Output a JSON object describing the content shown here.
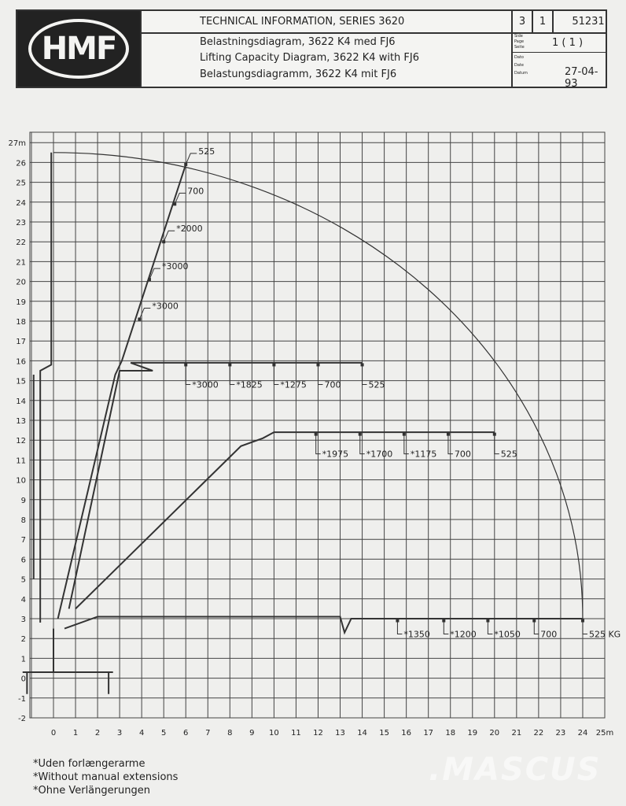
{
  "header": {
    "logo_text": "HMF",
    "title": "TECHNICAL INFORMATION, SERIES 3620",
    "subtitle_da": "Belastningsdiagram, 3622 K4 med FJ6",
    "subtitle_en": "Lifting Capacity Diagram, 3622 K4 with FJ6",
    "subtitle_de": "Belastungsdiagramm, 3622 K4 mit FJ6",
    "cell_a": "3",
    "cell_b": "1",
    "doc_number": "51231",
    "page_labels": [
      "Side",
      "Page",
      "Seite"
    ],
    "page": "1 ( 1 )",
    "date_labels": [
      "Dato",
      "Date",
      "Datum"
    ],
    "date": "27-04-93"
  },
  "chart_data": {
    "type": "diagram",
    "x_ticks": [
      "0",
      "1",
      "2",
      "3",
      "4",
      "5",
      "6",
      "7",
      "8",
      "9",
      "10",
      "11",
      "12",
      "13",
      "14",
      "15",
      "16",
      "17",
      "18",
      "19",
      "20",
      "21",
      "22",
      "23",
      "24",
      "25m"
    ],
    "y_ticks": [
      "-2",
      "-1",
      "0",
      "1",
      "2",
      "3",
      "4",
      "5",
      "6",
      "7",
      "8",
      "9",
      "10",
      "11",
      "12",
      "13",
      "14",
      "15",
      "16",
      "17",
      "18",
      "19",
      "20",
      "21",
      "22",
      "23",
      "24",
      "25",
      "26",
      "27m"
    ],
    "xlim": [
      -1,
      25
    ],
    "ylim": [
      -2,
      27
    ],
    "grid": true,
    "reach_envelope": {
      "from": [
        0,
        26.5
      ],
      "to": [
        24,
        3
      ]
    },
    "load_points": [
      {
        "config": "steep",
        "x": 6.0,
        "y": 25.9,
        "label": "525"
      },
      {
        "config": "steep",
        "x": 5.5,
        "y": 23.9,
        "label": "700"
      },
      {
        "config": "steep",
        "x": 5.0,
        "y": 22.0,
        "label": "*2000"
      },
      {
        "config": "steep",
        "x": 4.35,
        "y": 20.1,
        "label": "*3000"
      },
      {
        "config": "steep",
        "x": 3.9,
        "y": 18.1,
        "label": "*3000"
      },
      {
        "config": "16m",
        "x": 6,
        "y": 15.8,
        "label": "*3000"
      },
      {
        "config": "16m",
        "x": 8,
        "y": 15.8,
        "label": "*1825"
      },
      {
        "config": "16m",
        "x": 10,
        "y": 15.8,
        "label": "*1275"
      },
      {
        "config": "16m",
        "x": 12,
        "y": 15.8,
        "label": "700"
      },
      {
        "config": "16m",
        "x": 14,
        "y": 15.8,
        "label": "525"
      },
      {
        "config": "12m",
        "x": 11.9,
        "y": 12.3,
        "label": "*1975"
      },
      {
        "config": "12m",
        "x": 13.9,
        "y": 12.3,
        "label": "*1700"
      },
      {
        "config": "12m",
        "x": 15.9,
        "y": 12.3,
        "label": "*1175"
      },
      {
        "config": "12m",
        "x": 17.9,
        "y": 12.3,
        "label": "700"
      },
      {
        "config": "12m",
        "x": 20.0,
        "y": 12.3,
        "label": "525"
      },
      {
        "config": "3m",
        "x": 15.6,
        "y": 2.9,
        "label": "*1350"
      },
      {
        "config": "3m",
        "x": 17.7,
        "y": 2.9,
        "label": "*1200"
      },
      {
        "config": "3m",
        "x": 19.7,
        "y": 2.9,
        "label": "*1050"
      },
      {
        "config": "3m",
        "x": 21.8,
        "y": 2.9,
        "label": "700"
      },
      {
        "config": "3m",
        "x": 24.0,
        "y": 2.9,
        "label": "525 KG"
      }
    ]
  },
  "footnotes": [
    "*Uden forlængerarme",
    "*Without manual extensions",
    "*Ohne Verlängerungen"
  ],
  "watermark": ".MASCUS"
}
